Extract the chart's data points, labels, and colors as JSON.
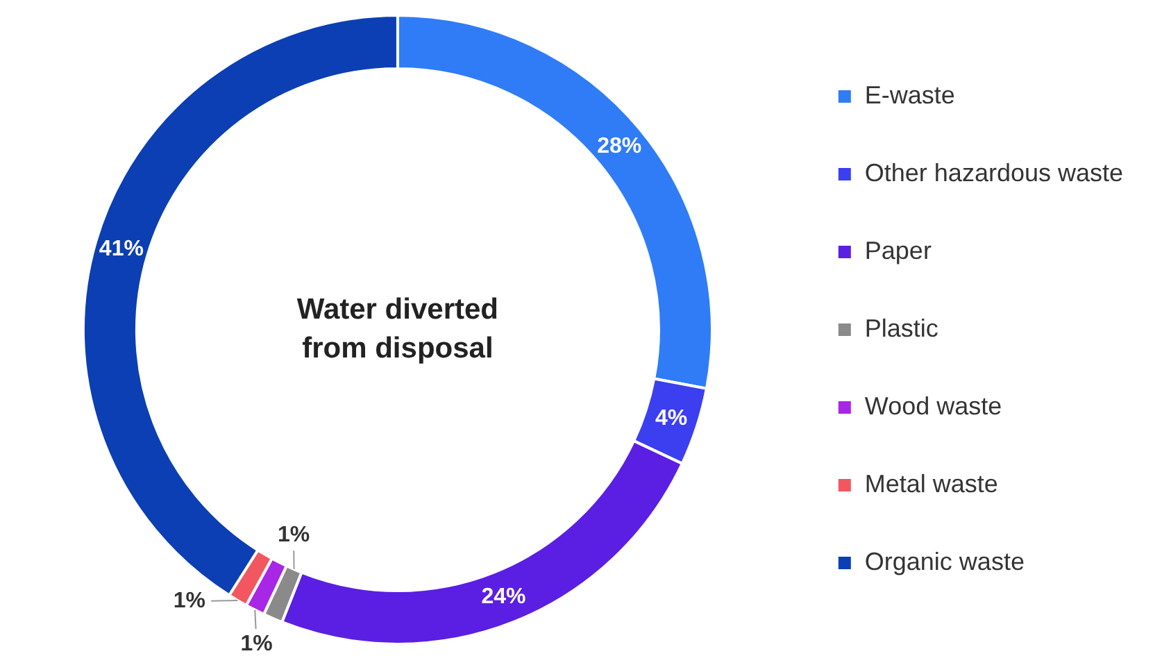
{
  "chart_data": {
    "type": "donut",
    "title": "Water diverted from disposal",
    "categories": [
      "E-waste",
      "Other hazardous waste",
      "Paper",
      "Plastic",
      "Wood waste",
      "Metal waste",
      "Organic waste"
    ],
    "values": [
      28,
      4,
      24,
      1,
      1,
      1,
      41
    ],
    "colors": [
      "#2f7cf6",
      "#3b3ff0",
      "#5a1fe3",
      "#8a8a8a",
      "#a826e6",
      "#f2575f",
      "#0b3fb3"
    ],
    "value_labels": [
      "28%",
      "4%",
      "24%",
      "1%",
      "1%",
      "1%",
      "41%"
    ],
    "legend": "right"
  }
}
